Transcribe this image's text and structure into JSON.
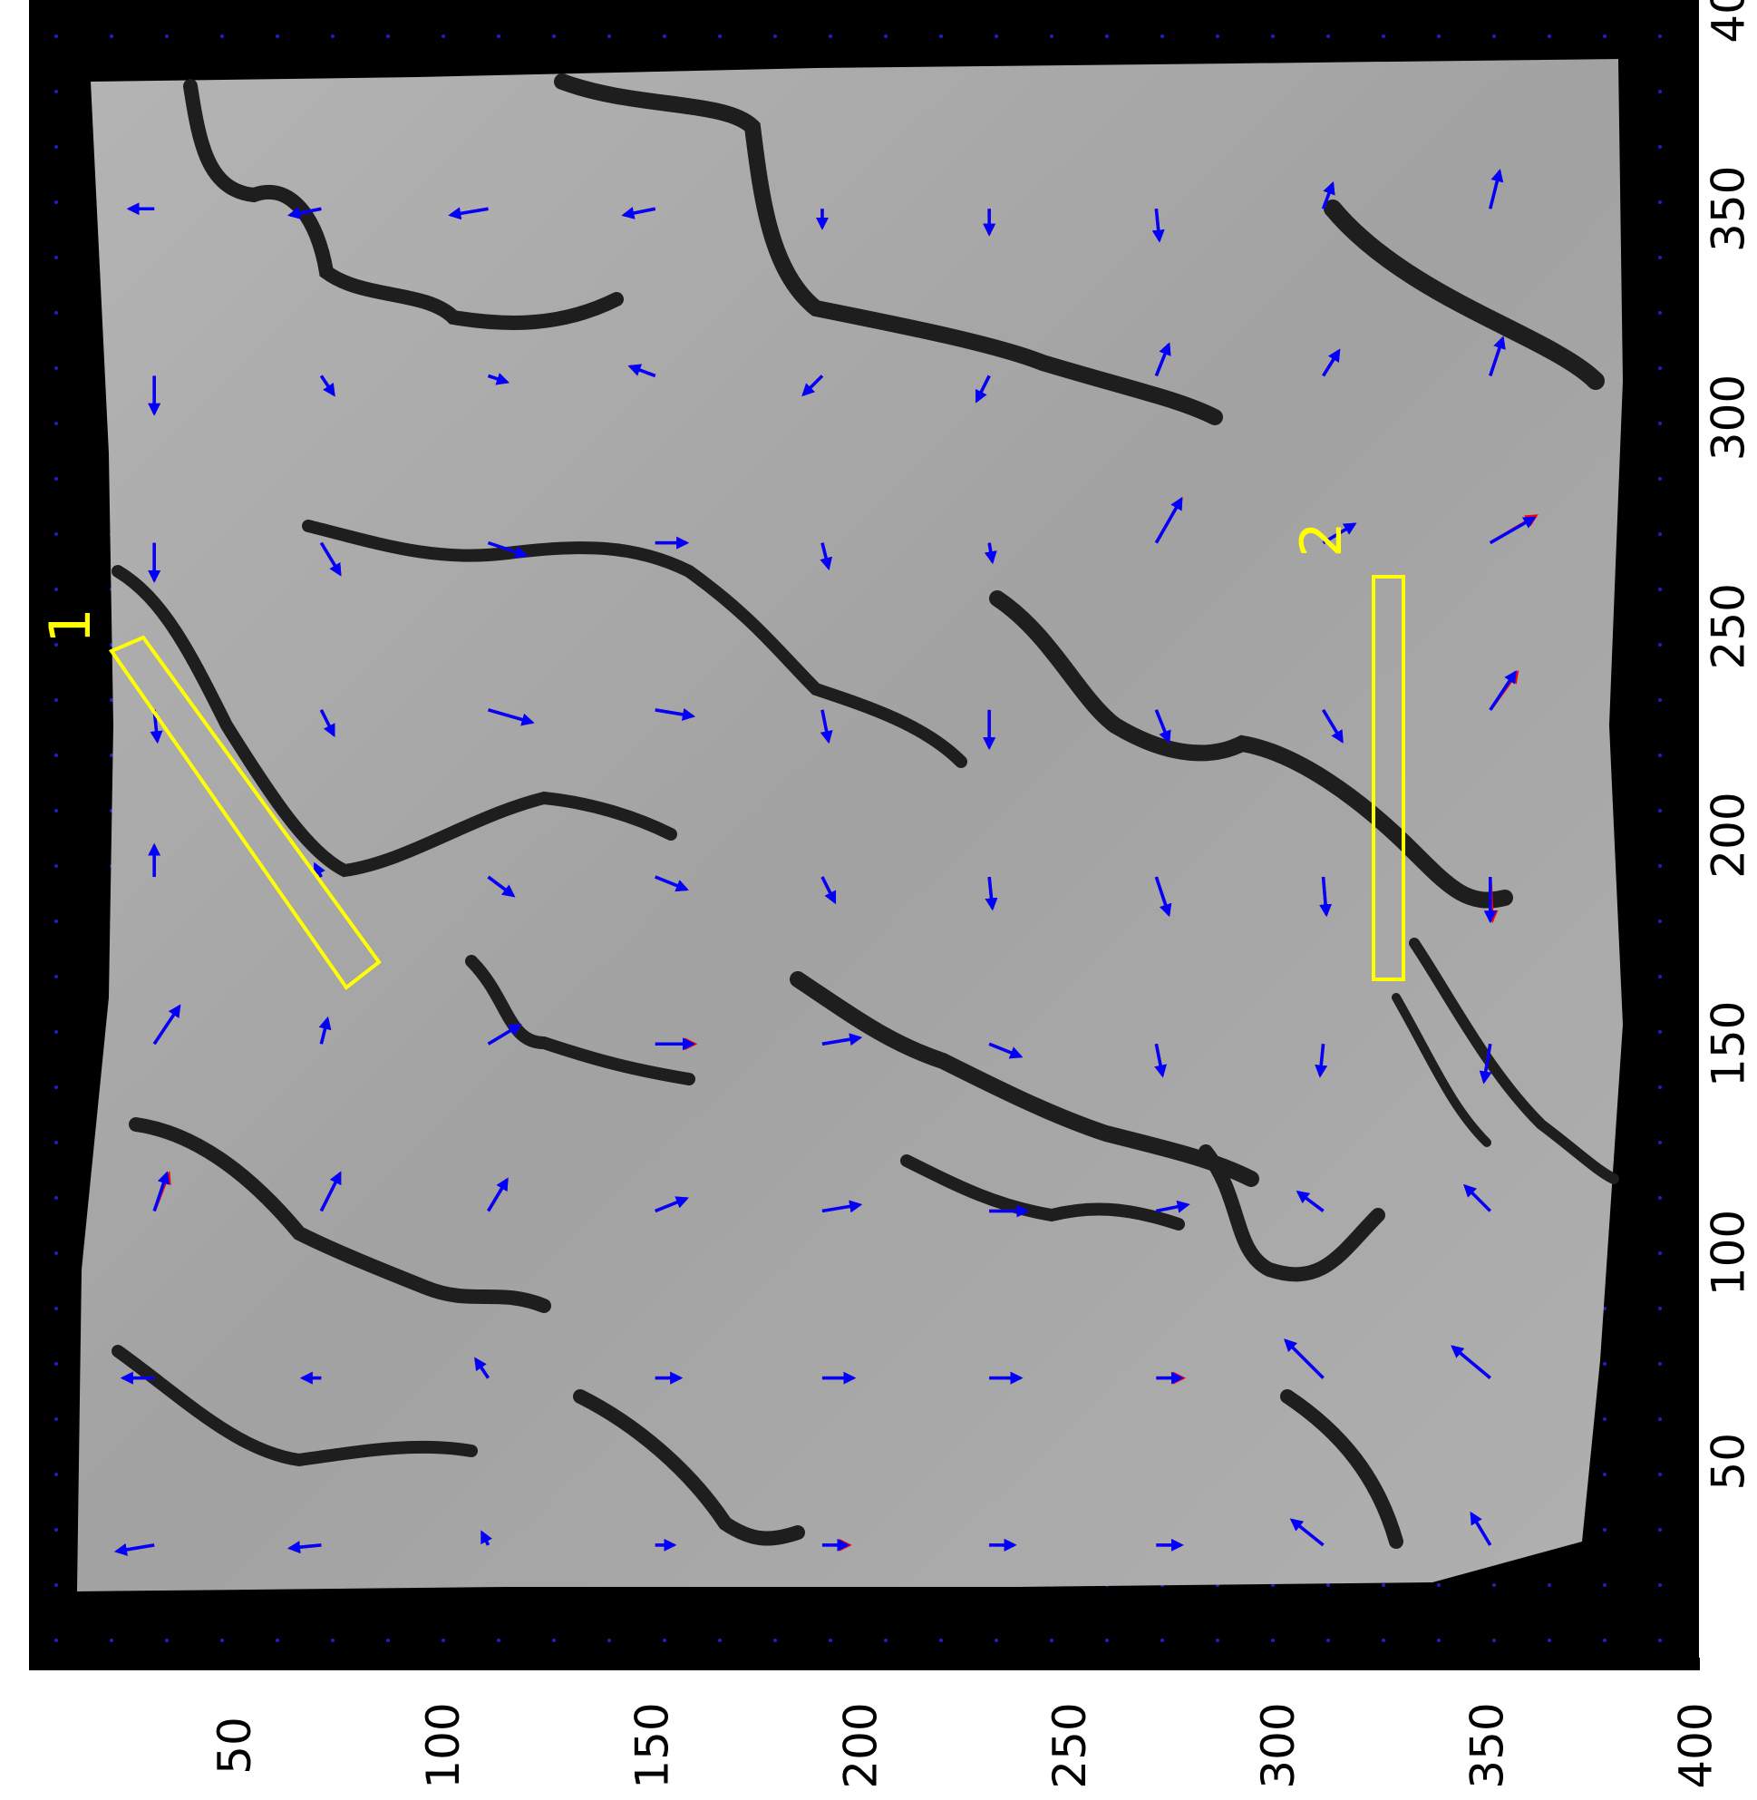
{
  "chart_data": {
    "type": "quiver",
    "x": [
      30,
      70,
      110,
      150,
      190,
      230,
      270,
      310,
      350
    ],
    "y": [
      30,
      70,
      110,
      150,
      190,
      230,
      270,
      310,
      350
    ],
    "xlim": [
      0,
      400
    ],
    "ylim": [
      0,
      400
    ],
    "xticks": [
      50,
      100,
      150,
      200,
      250,
      300,
      350,
      400
    ],
    "yticks": [
      50,
      100,
      150,
      200,
      250,
      300,
      350,
      400
    ],
    "annotations": [
      "1",
      "2"
    ],
    "series": [
      {
        "color": "#ff0000",
        "u": [
          [
            -9,
            -7.5,
            -1.5,
            4.5,
            6.5,
            6,
            6,
            -7.5,
            -4.5
          ],
          [
            -7.5,
            -4.5,
            -3,
            6,
            7.5,
            7.5,
            6.5,
            -9,
            -9
          ],
          [
            3.5,
            4.5,
            4.5,
            7.5,
            9,
            9,
            7.5,
            -6,
            -6
          ],
          [
            6,
            1.5,
            7.5,
            9.5,
            9,
            7.5,
            1.5,
            -0.75,
            -1.5
          ],
          [
            0,
            -1.5,
            6,
            7.5,
            3,
            0.75,
            3,
            0.75,
            0.5
          ],
          [
            0.75,
            3,
            10.5,
            9,
            1.5,
            0,
            3,
            4.5,
            6.5
          ],
          [
            0,
            4.5,
            9,
            7.5,
            1.5,
            0.75,
            6,
            7.5,
            11
          ],
          [
            0,
            3,
            4.5,
            -6,
            -4.5,
            -3,
            3,
            3.75,
            3
          ],
          [
            -6,
            -7.5,
            -9,
            -7.5,
            0,
            0,
            0.75,
            2.25,
            2.25
          ]
        ],
        "v": [
          [
            -1.5,
            -0.75,
            3,
            0,
            0,
            0,
            0,
            6,
            7.5
          ],
          [
            0,
            0,
            4.5,
            0,
            0,
            0,
            0,
            9,
            7.5
          ],
          [
            9,
            9,
            7.5,
            3,
            1.5,
            0,
            1.5,
            4.5,
            6
          ],
          [
            9,
            6,
            4.5,
            0,
            1.5,
            -3,
            -7.5,
            -7.5,
            -9
          ],
          [
            7.5,
            3,
            -4.5,
            -3,
            -6,
            -7.5,
            -9,
            -9,
            -10.5
          ],
          [
            -7.5,
            -6,
            -3,
            -1.5,
            -7.5,
            -9,
            -7.5,
            -7.5,
            9
          ],
          [
            -9,
            -7.5,
            -3,
            0,
            -6,
            -4.5,
            10.5,
            4.5,
            6.5
          ],
          [
            -9,
            -4.5,
            -1.5,
            2.25,
            -4.5,
            -6,
            7.5,
            6,
            9
          ],
          [
            0,
            -1.5,
            -1.5,
            -1.5,
            -4.5,
            -6,
            -7.5,
            6,
            9
          ]
        ]
      },
      {
        "color": "#0000ff",
        "u": [
          [
            -9,
            -7.5,
            -1.5,
            4.5,
            6,
            6,
            6,
            -7.5,
            -4.5
          ],
          [
            -7.5,
            -4.5,
            -3,
            6,
            7.5,
            7.5,
            6,
            -9,
            -9
          ],
          [
            3,
            4.5,
            4.5,
            7.5,
            9,
            9,
            7.5,
            -6,
            -6
          ],
          [
            6,
            1.5,
            7.5,
            9,
            9,
            7.5,
            1.5,
            -0.75,
            -1.5
          ],
          [
            0,
            -1.5,
            6,
            7.5,
            3,
            0.75,
            3,
            0.75,
            0
          ],
          [
            0.75,
            3,
            10.5,
            9,
            1.5,
            0,
            3,
            4.5,
            6
          ],
          [
            0,
            4.5,
            9,
            7.5,
            1.5,
            0.75,
            6,
            7.5,
            10.5
          ],
          [
            0,
            3,
            4.5,
            -6,
            -4.5,
            -3,
            3,
            3.75,
            3
          ],
          [
            -6,
            -7.5,
            -9,
            -7.5,
            0,
            0,
            0.75,
            2.25,
            2.25
          ]
        ],
        "v": [
          [
            -1.5,
            -0.75,
            3,
            0,
            0,
            0,
            0,
            6,
            7.5
          ],
          [
            0,
            0,
            4.5,
            0,
            0,
            0,
            0,
            9,
            7.5
          ],
          [
            9,
            9,
            7.5,
            3,
            1.5,
            0,
            1.5,
            4.5,
            6
          ],
          [
            9,
            6,
            4.5,
            0,
            1.5,
            -3,
            -7.5,
            -7.5,
            -9
          ],
          [
            7.5,
            3,
            -4.5,
            -3,
            -6,
            -7.5,
            -9,
            -9,
            -10.5
          ],
          [
            -7.5,
            -6,
            -3,
            -1.5,
            -7.5,
            -9,
            -7.5,
            -7.5,
            9
          ],
          [
            -9,
            -7.5,
            -3,
            0,
            -6,
            -4.5,
            10.5,
            4.5,
            6
          ],
          [
            -9,
            -4.5,
            -1.5,
            2.25,
            -4.5,
            -6,
            7.5,
            6,
            9
          ],
          [
            0,
            -1.5,
            -1.5,
            -1.5,
            -4.5,
            -6,
            -7.5,
            6,
            9
          ]
        ]
      }
    ]
  }
}
